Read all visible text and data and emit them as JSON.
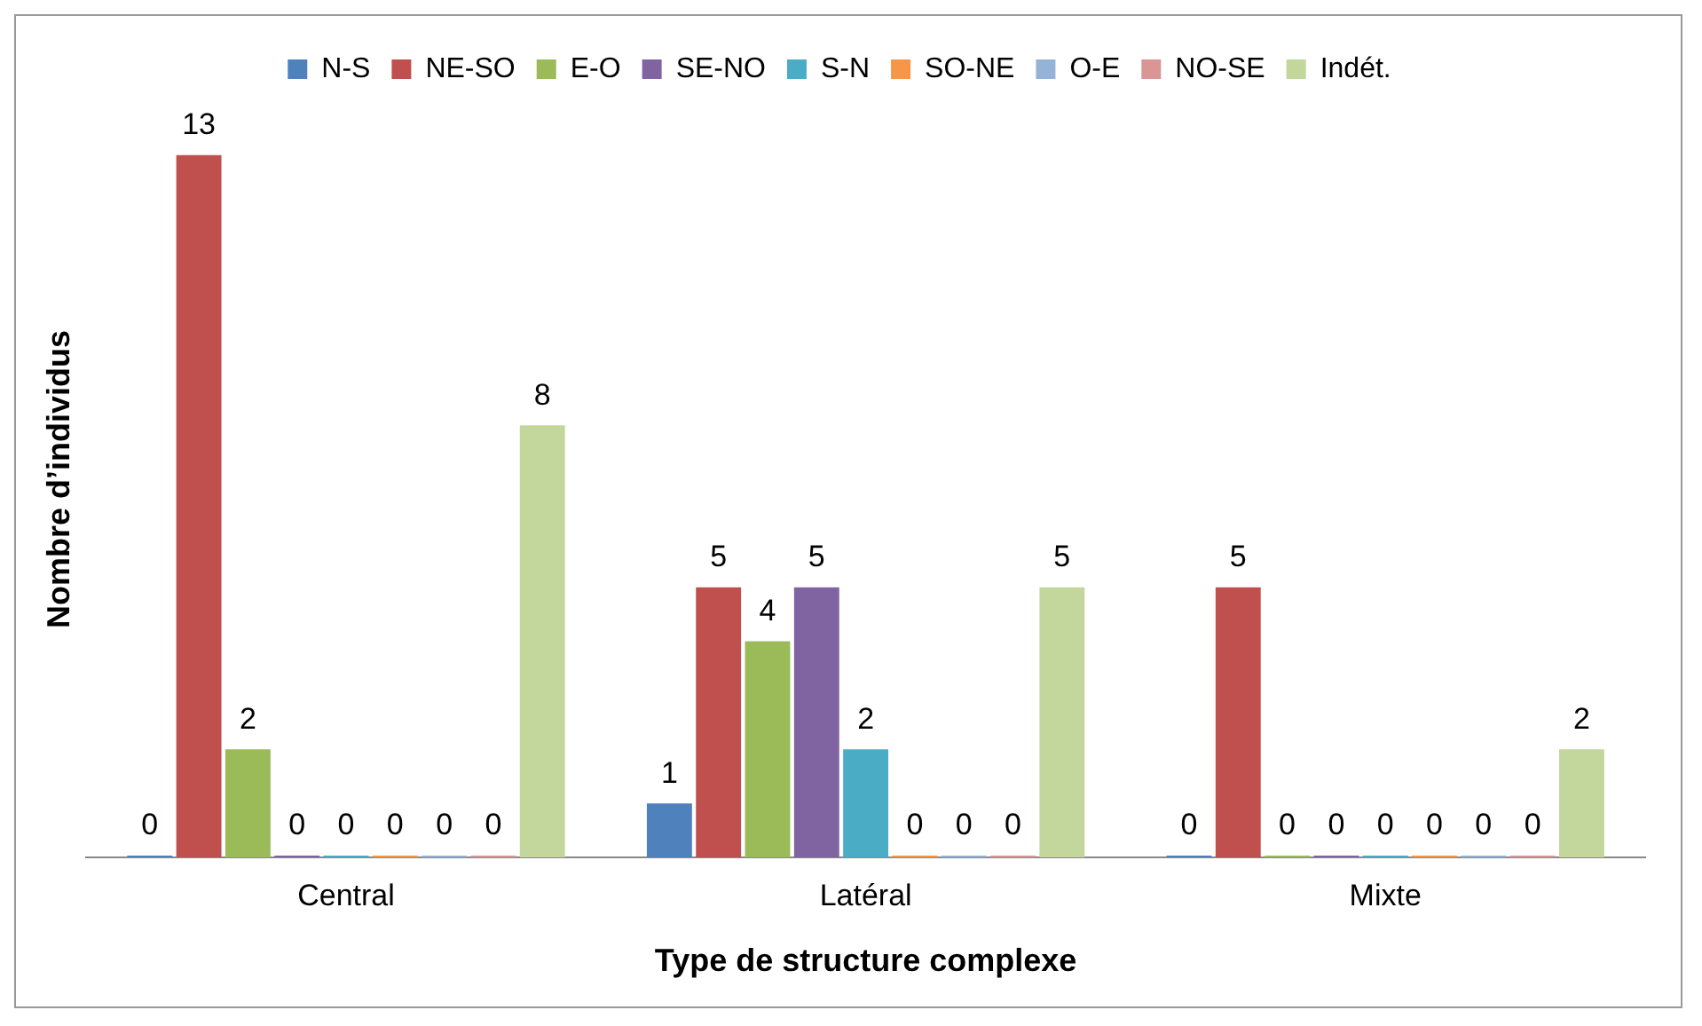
{
  "chart_data": {
    "type": "bar",
    "xlabel": "Type de structure complexe",
    "ylabel": "Nombre d’individus",
    "categories": [
      "Central",
      "Latéral",
      "Mixte"
    ],
    "series": [
      {
        "name": "N-S",
        "color": "#4f81bd",
        "values": [
          0,
          1,
          0
        ]
      },
      {
        "name": "NE-SO",
        "color": "#c0504d",
        "values": [
          13,
          5,
          5
        ]
      },
      {
        "name": "E-O",
        "color": "#9bbb59",
        "values": [
          2,
          4,
          0
        ]
      },
      {
        "name": "SE-NO",
        "color": "#8064a2",
        "values": [
          0,
          5,
          0
        ]
      },
      {
        "name": "S-N",
        "color": "#4bacc6",
        "values": [
          0,
          2,
          0
        ]
      },
      {
        "name": "SO-NE",
        "color": "#f79646",
        "values": [
          0,
          0,
          0
        ]
      },
      {
        "name": "O-E",
        "color": "#95b3d7",
        "values": [
          0,
          0,
          0
        ]
      },
      {
        "name": "NO-SE",
        "color": "#d99694",
        "values": [
          0,
          0,
          0
        ]
      },
      {
        "name": "Indét.",
        "color": "#c3d69b",
        "values": [
          8,
          5,
          2
        ]
      }
    ],
    "data_labels": true,
    "legend": "top",
    "grid": false
  }
}
